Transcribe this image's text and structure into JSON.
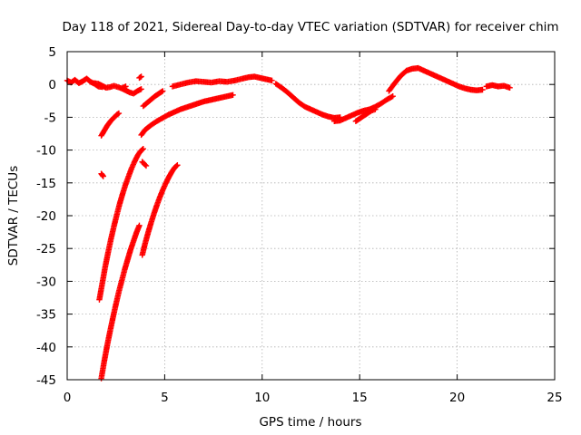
{
  "chart_data": {
    "type": "scatter",
    "title": "Day 118 of 2021, Sidereal Day-to-day VTEC variation (SDTVAR) for receiver chim",
    "xlabel": "GPS time / hours",
    "ylabel": "SDTVAR / TECUs",
    "xlim": [
      0,
      25
    ],
    "ylim": [
      -45,
      5
    ],
    "x_ticks": [
      0,
      5,
      10,
      15,
      20,
      25
    ],
    "y_ticks": [
      5,
      0,
      -5,
      -10,
      -15,
      -20,
      -25,
      -30,
      -35,
      -40,
      -45
    ],
    "grid": true,
    "marker": "plus",
    "color": "#ff0000",
    "series": [
      {
        "name": "segment-1",
        "x": [
          0.0,
          0.2,
          0.4,
          0.6,
          0.8,
          1.0,
          1.2,
          1.4,
          1.6,
          1.8
        ],
        "y": [
          0.6,
          0.3,
          0.7,
          0.2,
          0.5,
          0.9,
          0.4,
          0.1,
          -0.3,
          -0.4
        ]
      },
      {
        "name": "segment-2",
        "x": [
          1.4,
          1.6,
          1.8,
          2.0,
          2.2,
          2.4,
          2.6,
          2.8,
          3.0
        ],
        "y": [
          0.2,
          0.1,
          -0.2,
          -0.5,
          -0.4,
          -0.2,
          -0.4,
          -0.6,
          -0.3
        ]
      },
      {
        "name": "segment-3",
        "x": [
          2.8,
          3.0,
          3.2,
          3.4,
          3.6,
          3.8
        ],
        "y": [
          -0.6,
          -0.9,
          -1.2,
          -1.4,
          -1.0,
          -0.7
        ]
      },
      {
        "name": "segment-4",
        "x": [
          3.7,
          3.8
        ],
        "y": [
          1.0,
          1.2
        ]
      },
      {
        "name": "segment-5",
        "x": [
          3.9,
          4.1,
          4.3,
          4.5,
          4.7,
          4.9
        ],
        "y": [
          -3.3,
          -2.8,
          -2.3,
          -1.8,
          -1.4,
          -1.0
        ]
      },
      {
        "name": "segment-6",
        "x": [
          1.75,
          1.85,
          1.95,
          2.05,
          2.15,
          2.25,
          2.35,
          2.45,
          2.55,
          2.65
        ],
        "y": [
          -7.8,
          -7.3,
          -6.8,
          -6.3,
          -5.9,
          -5.5,
          -5.2,
          -4.9,
          -4.6,
          -4.4
        ]
      },
      {
        "name": "segment-7",
        "x": [
          1.75,
          1.8,
          1.85
        ],
        "y": [
          -13.6,
          -13.8,
          -14.0
        ]
      },
      {
        "name": "segment-8",
        "x": [
          3.8,
          4.0,
          4.3,
          4.6,
          4.9,
          5.2,
          5.5,
          5.8,
          6.1,
          6.4,
          6.7,
          7.0,
          7.3,
          7.6,
          7.9,
          8.2,
          8.5
        ],
        "y": [
          -7.7,
          -6.9,
          -6.2,
          -5.6,
          -5.1,
          -4.6,
          -4.2,
          -3.8,
          -3.5,
          -3.2,
          -2.9,
          -2.6,
          -2.4,
          -2.2,
          -2.0,
          -1.8,
          -1.6
        ]
      },
      {
        "name": "segment-9",
        "x": [
          5.4,
          5.8,
          6.2,
          6.6,
          7.0,
          7.4,
          7.8,
          8.2,
          8.6,
          9.0,
          9.3,
          9.6,
          9.9,
          10.2,
          10.5
        ],
        "y": [
          -0.3,
          0.0,
          0.3,
          0.5,
          0.4,
          0.3,
          0.5,
          0.4,
          0.6,
          0.9,
          1.1,
          1.2,
          1.0,
          0.8,
          0.6
        ]
      },
      {
        "name": "segment-10",
        "x": [
          10.7,
          11.0,
          11.3,
          11.6,
          11.9,
          12.2,
          12.5,
          12.8,
          13.1,
          13.4,
          13.7,
          14.0
        ],
        "y": [
          0.1,
          -0.5,
          -1.2,
          -2.0,
          -2.8,
          -3.4,
          -3.8,
          -4.2,
          -4.6,
          -4.9,
          -5.1,
          -5.0
        ]
      },
      {
        "name": "segment-11",
        "x": [
          13.7,
          14.0,
          14.3,
          14.6,
          14.9,
          15.2,
          15.5,
          15.8,
          16.1,
          16.4,
          16.7
        ],
        "y": [
          -5.6,
          -5.5,
          -5.1,
          -4.7,
          -4.3,
          -4.0,
          -3.8,
          -3.4,
          -2.9,
          -2.3,
          -1.8
        ]
      },
      {
        "name": "segment-12",
        "x": [
          14.8,
          15.0,
          15.2,
          15.4,
          15.6,
          15.8
        ],
        "y": [
          -5.6,
          -5.2,
          -4.8,
          -4.4,
          -4.0,
          -3.8
        ]
      },
      {
        "name": "segment-13",
        "x": [
          16.5,
          16.8,
          17.1,
          17.4,
          17.7,
          18.0,
          18.3,
          18.6,
          18.9,
          19.2,
          19.5,
          19.8,
          20.1,
          20.4,
          20.7,
          21.0,
          21.3
        ],
        "y": [
          -1.0,
          0.2,
          1.3,
          2.1,
          2.4,
          2.5,
          2.1,
          1.7,
          1.3,
          0.9,
          0.5,
          0.1,
          -0.3,
          -0.6,
          -0.8,
          -0.9,
          -0.8
        ]
      },
      {
        "name": "segment-14",
        "x": [
          21.5,
          21.8,
          22.1,
          22.4,
          22.7
        ],
        "y": [
          -0.3,
          -0.1,
          -0.3,
          -0.2,
          -0.5
        ]
      },
      {
        "name": "segment-15",
        "x": [
          1.65,
          1.8,
          1.95,
          2.1,
          2.25,
          2.4,
          2.55,
          2.7,
          2.85,
          3.0,
          3.15,
          3.3,
          3.45,
          3.6,
          3.75,
          3.9
        ],
        "y": [
          -32.8,
          -30.3,
          -27.8,
          -25.6,
          -23.5,
          -21.6,
          -19.8,
          -18.1,
          -16.6,
          -15.2,
          -14.0,
          -12.8,
          -11.8,
          -10.9,
          -10.2,
          -9.8
        ]
      },
      {
        "name": "segment-16",
        "x": [
          3.85,
          3.95,
          4.05
        ],
        "y": [
          -11.8,
          -12.1,
          -12.4
        ]
      },
      {
        "name": "segment-17",
        "x": [
          1.75,
          1.9,
          2.05,
          2.2,
          2.35,
          2.5,
          2.65,
          2.8,
          2.95,
          3.1,
          3.25,
          3.4,
          3.55,
          3.7
        ],
        "y": [
          -44.8,
          -42.2,
          -39.8,
          -37.6,
          -35.5,
          -33.5,
          -31.6,
          -29.9,
          -28.2,
          -26.7,
          -25.2,
          -23.9,
          -22.6,
          -21.5
        ]
      },
      {
        "name": "segment-18",
        "x": [
          3.85,
          4.0,
          4.15,
          4.3,
          4.45,
          4.6,
          4.75,
          4.9,
          5.05,
          5.2,
          5.35,
          5.5,
          5.65
        ],
        "y": [
          -26.0,
          -24.2,
          -22.6,
          -21.1,
          -19.7,
          -18.4,
          -17.2,
          -16.1,
          -15.1,
          -14.2,
          -13.4,
          -12.7,
          -12.3
        ]
      }
    ]
  }
}
